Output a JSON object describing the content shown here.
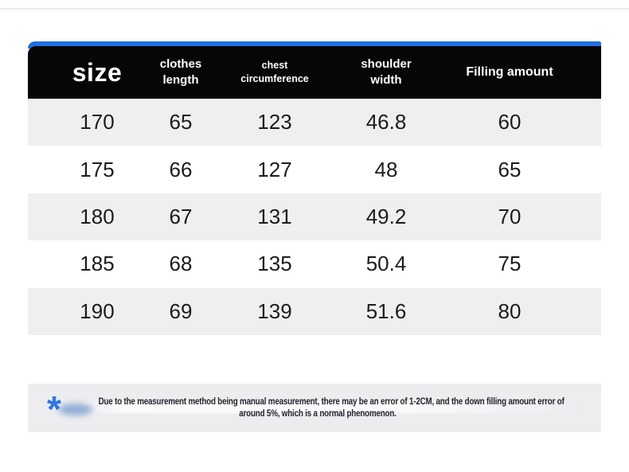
{
  "chart_data": {
    "type": "table",
    "columns": [
      {
        "id": "size",
        "label": "size"
      },
      {
        "id": "clothes-length",
        "lines": [
          "clothes",
          "length"
        ]
      },
      {
        "id": "chest-circumference",
        "lines": [
          "chest",
          "circumference"
        ]
      },
      {
        "id": "shoulder-width",
        "lines": [
          "shoulder",
          "width"
        ]
      },
      {
        "id": "filling-amount",
        "label": "Filling amount"
      }
    ],
    "rows": [
      [
        "170",
        "65",
        "123",
        "46.8",
        "60"
      ],
      [
        "175",
        "66",
        "127",
        "48",
        "65"
      ],
      [
        "180",
        "67",
        "131",
        "49.2",
        "70"
      ],
      [
        "185",
        "68",
        "135",
        "50.4",
        "75"
      ],
      [
        "190",
        "69",
        "139",
        "51.6",
        "80"
      ]
    ]
  },
  "note": {
    "marker": "*",
    "line1": "Due to the measurement method being manual measurement, there may be an error of 1-2CM, and the down filling amount error of",
    "line2": "around 5%, which is a normal phenomenon."
  },
  "colors": {
    "accent_blue": "#1f6fde",
    "header_black": "#060606",
    "row_alt_gray": "#efeff2",
    "note_bg": "#ededf0",
    "note_text": "#23242c"
  }
}
